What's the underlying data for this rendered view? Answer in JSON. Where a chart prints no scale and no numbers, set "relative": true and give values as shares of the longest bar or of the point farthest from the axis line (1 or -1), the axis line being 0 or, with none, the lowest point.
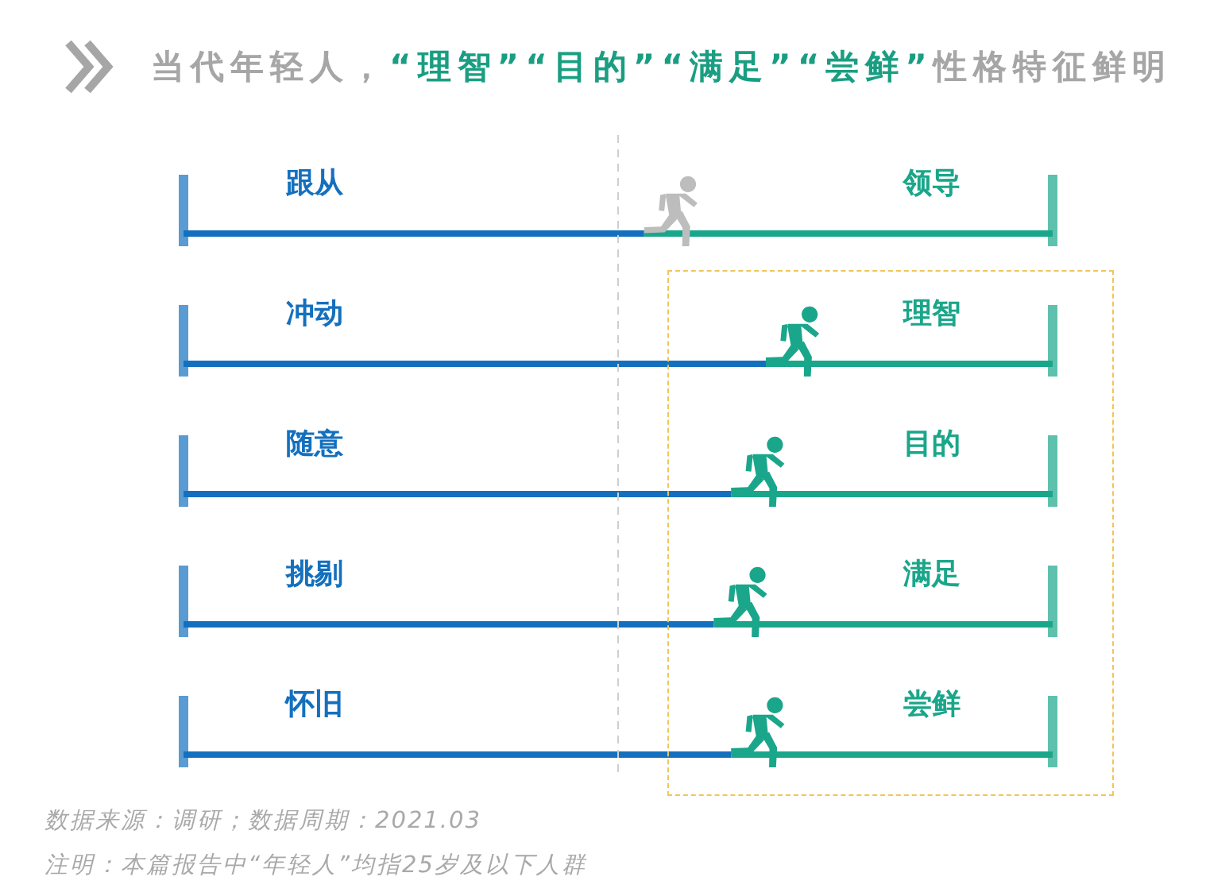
{
  "chart_data": {
    "type": "bar",
    "orientation": "horizontal",
    "stacked": true,
    "relative": true,
    "title": "当代年轻人，“理智”“目的”“满足”“尝鲜”性格特征鲜明",
    "categories": [
      "跟从",
      "冲动",
      "随意",
      "挑剔",
      "怀旧"
    ],
    "series": [
      {
        "color": "#1470be",
        "values": [
          0.53,
          0.67,
          0.63,
          0.61,
          0.63
        ]
      },
      {
        "color": "#1aa68a",
        "values": [
          0.47,
          0.33,
          0.37,
          0.39,
          0.37
        ]
      }
    ],
    "ref_lines": [
      {
        "axis": "x",
        "value": 0.5,
        "color": "#cfcfcf",
        "line_style": "dashed"
      }
    ],
    "annotations": [
      {
        "text": "领导",
        "y": "跟从"
      },
      {
        "text": "理智",
        "y": "冲动"
      },
      {
        "text": "目的",
        "y": "随意"
      },
      {
        "text": "满足",
        "y": "挑剔"
      },
      {
        "text": "尝鲜",
        "y": "怀旧"
      },
      "数据来源：调研；数据周期：2021.03",
      "注明：本篇报告中“年轻人”均指25岁及以下人群"
    ]
  }
}
